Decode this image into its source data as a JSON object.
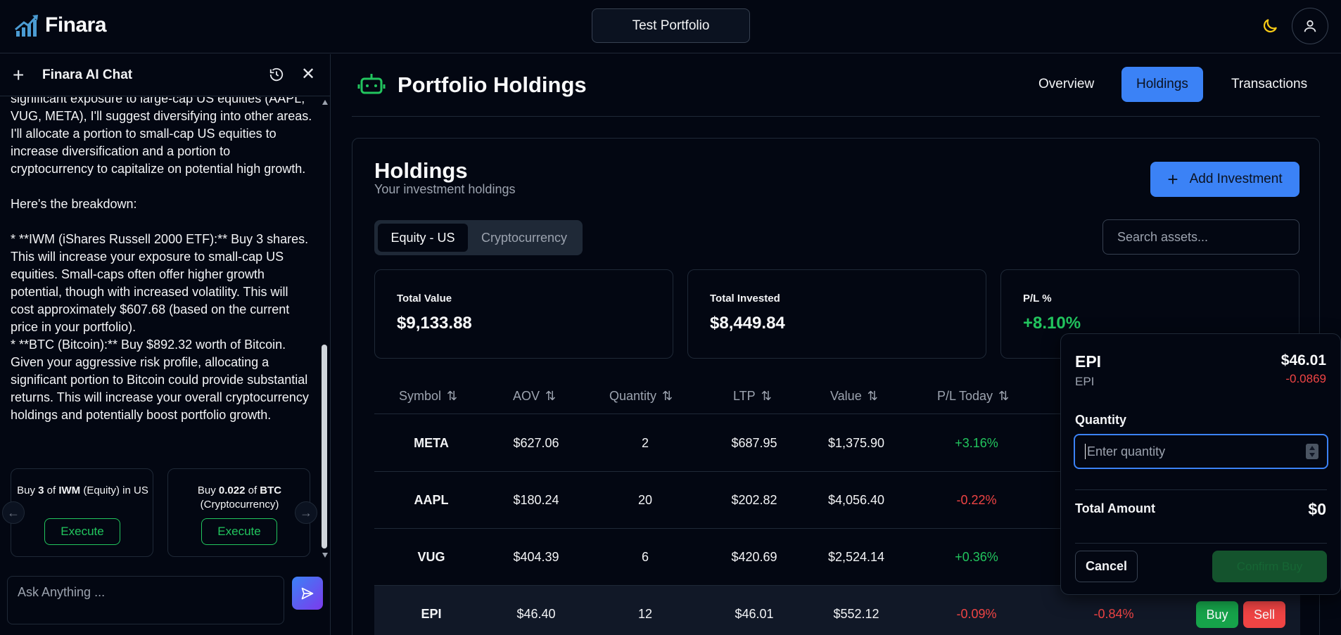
{
  "app": {
    "name": "Finara",
    "portfolio_selector": "Test Portfolio"
  },
  "chat": {
    "title": "Finara AI Chat",
    "message": "significant exposure to large-cap US equities (AAPL, VUG, META), I'll suggest diversifying into other areas. I'll allocate a portion to small-cap US equities to increase diversification and a portion to cryptocurrency to capitalize on potential high growth.\n\nHere's the breakdown:\n\n* **IWM (iShares Russell 2000 ETF):** Buy 3 shares. This will increase your exposure to small-cap US equities. Small-caps often offer higher growth potential, though with increased volatility. This will cost approximately $607.68 (based on the current price in your portfolio).\n* **BTC (Bitcoin):** Buy $892.32 worth of Bitcoin. Given your aggressive risk profile, allocating a significant portion to Bitcoin could provide substantial returns. This will increase your overall cryptocurrency holdings and potentially boost portfolio growth.",
    "suggestions": [
      {
        "prefix": "Buy ",
        "qty": "3",
        "of": " of ",
        "asset": "IWM",
        "suffix": " (Equity) in US",
        "action": "Execute"
      },
      {
        "prefix": "Buy ",
        "qty": "0.022",
        "of": " of ",
        "asset": "BTC",
        "suffix": " (Cryptocurrency)",
        "action": "Execute"
      }
    ],
    "input_placeholder": "Ask Anything ..."
  },
  "main": {
    "title": "Portfolio Holdings",
    "tabs": [
      "Overview",
      "Holdings",
      "Transactions"
    ],
    "active_tab": "Holdings"
  },
  "holdings": {
    "title": "Holdings",
    "subtitle": "Your investment holdings",
    "add_button": "Add Investment",
    "segments": [
      "Equity - US",
      "Cryptocurrency"
    ],
    "search_placeholder": "Search assets...",
    "stats": [
      {
        "label": "Total Value",
        "value": "$9,133.88"
      },
      {
        "label": "Total Invested",
        "value": "$8,449.84"
      },
      {
        "label": "P/L %",
        "value": "+8.10%"
      }
    ],
    "columns": [
      "Symbol",
      "AOV",
      "Quantity",
      "LTP",
      "Value",
      "P/L Today"
    ],
    "rows": [
      {
        "symbol": "META",
        "aov": "$627.06",
        "qty": "2",
        "ltp": "$687.95",
        "value": "$1,375.90",
        "pl_today": "+3.16%"
      },
      {
        "symbol": "AAPL",
        "aov": "$180.24",
        "qty": "20",
        "ltp": "$202.82",
        "value": "$4,056.40",
        "pl_today": "-0.22%"
      },
      {
        "symbol": "VUG",
        "aov": "$404.39",
        "qty": "6",
        "ltp": "$420.69",
        "value": "$2,524.14",
        "pl_today": "+0.36%"
      },
      {
        "symbol": "EPI",
        "aov": "$46.40",
        "qty": "12",
        "ltp": "$46.01",
        "value": "$552.12",
        "pl_today": "-0.09%",
        "pl_total": "-0.84%",
        "buy": "Buy",
        "sell": "Sell"
      }
    ]
  },
  "trade_popup": {
    "symbol": "EPI",
    "name": "EPI",
    "price": "$46.01",
    "change": "-0.0869",
    "quantity_label": "Quantity",
    "quantity_placeholder": "Enter quantity",
    "total_label": "Total Amount",
    "total_value": "$0",
    "cancel": "Cancel",
    "confirm": "Confirm Buy"
  },
  "colors": {
    "accent": "#3b82f6",
    "positive": "#22c55e",
    "negative": "#ef4444",
    "background": "#030712"
  }
}
